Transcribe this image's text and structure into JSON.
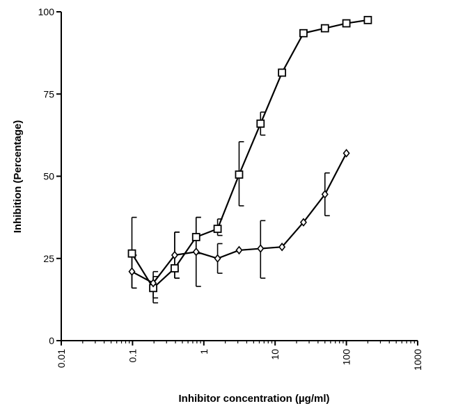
{
  "chart_data": {
    "type": "line",
    "xlabel": "Inhibitor concentration (µg/ml)",
    "ylabel": "Inhibition (Percentage)",
    "xscale": "log",
    "xlim": [
      0.01,
      1000
    ],
    "ylim": [
      0,
      100
    ],
    "x_ticks": [
      0.01,
      0.1,
      1,
      10,
      100,
      1000
    ],
    "x_tick_labels": [
      "0.01",
      "0.1",
      "1",
      "10",
      "100",
      "1000"
    ],
    "y_ticks": [
      0,
      25,
      50,
      75,
      100
    ],
    "y_tick_labels": [
      "0",
      "25",
      "50",
      "75",
      "100"
    ],
    "grid": false,
    "series": [
      {
        "marker": "square",
        "color": "#000000",
        "x": [
          0.098,
          0.195,
          0.39,
          0.78,
          1.56,
          3.125,
          6.25,
          12.5,
          25,
          50,
          100,
          200
        ],
        "y": [
          26.5,
          16,
          22,
          31.5,
          34,
          50.5,
          66,
          81.5,
          93.5,
          95,
          96.5,
          97.5
        ],
        "error_low": [
          16,
          11.5,
          19,
          26.5,
          32,
          41,
          62.5,
          null,
          null,
          null,
          null,
          null
        ],
        "error_high": [
          37.5,
          21,
          33,
          37.5,
          37,
          60.5,
          69.5,
          null,
          null,
          null,
          null,
          null
        ]
      },
      {
        "marker": "diamond",
        "color": "#000000",
        "x": [
          0.098,
          0.195,
          0.39,
          0.78,
          1.56,
          3.125,
          6.25,
          12.5,
          25,
          50,
          100
        ],
        "y": [
          21,
          17.5,
          26,
          27,
          25,
          27.5,
          28,
          28.5,
          36,
          44.5,
          57
        ],
        "error_low": [
          16,
          13,
          19,
          16.5,
          20.5,
          null,
          19,
          null,
          null,
          38,
          null
        ],
        "error_high": [
          26,
          19.5,
          33,
          37.5,
          29.5,
          null,
          36.5,
          null,
          null,
          51,
          null
        ]
      }
    ]
  }
}
